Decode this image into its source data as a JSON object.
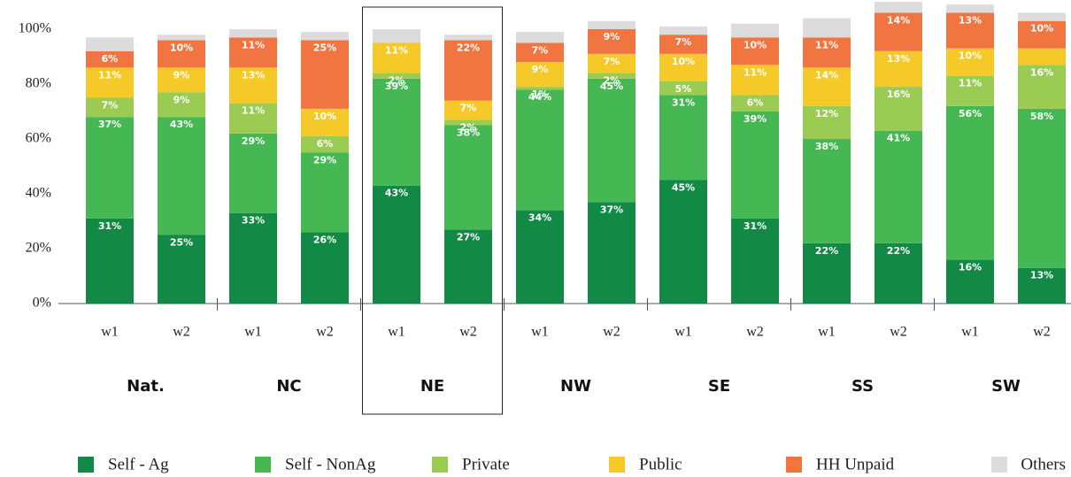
{
  "chart_data": {
    "type": "stacked-bar",
    "categories": [
      "w1",
      "w2",
      "w1",
      "w2",
      "w1",
      "w2",
      "w1",
      "w2",
      "w1",
      "w2",
      "w1",
      "w2",
      "w1",
      "w2"
    ],
    "groups": [
      "Nat.",
      "NC",
      "NE",
      "NW",
      "SE",
      "SS",
      "SW"
    ],
    "highlight_group": 2,
    "ylim": [
      0,
      100
    ],
    "yticks": [
      {
        "value": 0,
        "label": "0%"
      },
      {
        "value": 20,
        "label": "20%"
      },
      {
        "value": 40,
        "label": "40%"
      },
      {
        "value": 60,
        "label": "60%"
      },
      {
        "value": 80,
        "label": "80%"
      },
      {
        "value": 100,
        "label": "100%"
      }
    ],
    "series": [
      {
        "name": "Self - Ag",
        "color": "#128a46",
        "values": [
          31,
          25,
          33,
          26,
          43,
          27,
          34,
          37,
          45,
          31,
          22,
          22,
          16,
          13
        ],
        "value_labels": [
          "31%",
          "25%",
          "33%",
          "26%",
          "43%",
          "27%",
          "34%",
          "37%",
          "45%",
          "31%",
          "22%",
          "22%",
          "16%",
          "13%"
        ]
      },
      {
        "name": "Self - NonAg",
        "color": "#46b853",
        "values": [
          37,
          43,
          29,
          29,
          39,
          38,
          44,
          45,
          31,
          39,
          38,
          41,
          56,
          58
        ],
        "value_labels": [
          "37%",
          "43%",
          "29%",
          "29%",
          "39%",
          "38%",
          "44%",
          "45%",
          "31%",
          "39%",
          "38%",
          "41%",
          "56%",
          "58%"
        ]
      },
      {
        "name": "Private",
        "color": "#9acb52",
        "values": [
          7,
          9,
          11,
          6,
          2,
          2,
          1,
          2,
          5,
          6,
          12,
          16,
          11,
          16
        ],
        "value_labels": [
          "7%",
          "9%",
          "11%",
          "6%",
          "2%",
          "2%",
          "1%",
          "2%",
          "5%",
          "6%",
          "12%",
          "16%",
          "11%",
          "16%"
        ]
      },
      {
        "name": "Public",
        "color": "#f5c928",
        "values": [
          11,
          9,
          13,
          10,
          11,
          7,
          9,
          7,
          10,
          11,
          14,
          13,
          10,
          6
        ],
        "value_labels": [
          "11%",
          "9%",
          "13%",
          "10%",
          "11%",
          "7%",
          "9%",
          "7%",
          "10%",
          "11%",
          "14%",
          "13%",
          "10%",
          null
        ]
      },
      {
        "name": "HH Unpaid",
        "color": "#f07541",
        "values": [
          6,
          10,
          11,
          25,
          0,
          22,
          7,
          9,
          7,
          10,
          11,
          14,
          13,
          10
        ],
        "value_labels": [
          "6%",
          "10%",
          "11%",
          "25%",
          null,
          "22%",
          "7%",
          "9%",
          "7%",
          "10%",
          "11%",
          "14%",
          "13%",
          "10%"
        ]
      },
      {
        "name": "Others",
        "color": "#dcdcdc",
        "values": [
          5,
          2,
          3,
          3,
          5,
          2,
          4,
          3,
          3,
          5,
          7,
          4,
          3,
          3
        ]
      }
    ]
  }
}
